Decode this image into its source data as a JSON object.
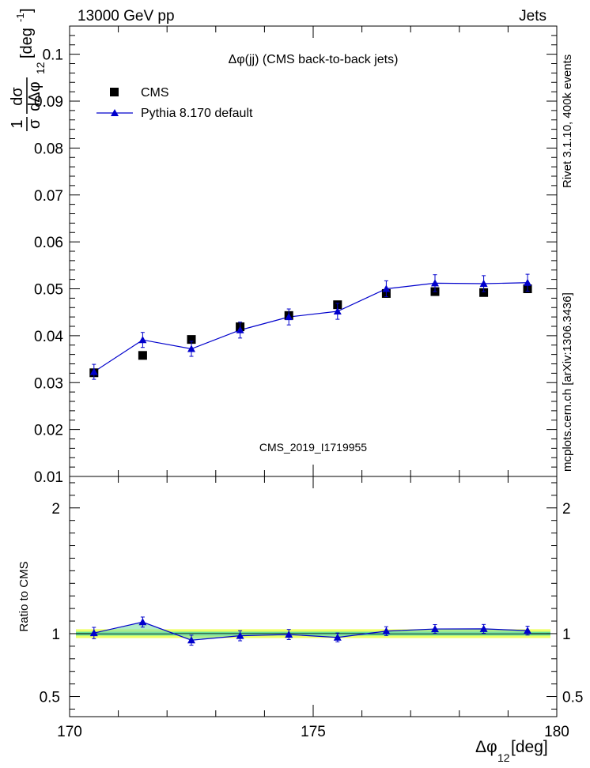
{
  "header": {
    "left": "13000 GeV pp",
    "right": "Jets",
    "side_rivet": "Rivet 3.1.10,  400k events",
    "side_mcplots": "mcplots.cern.ch [arXiv:1306.3436]",
    "watermark": "CMS_2019_I1719955"
  },
  "chart_data": [
    {
      "type": "scatter",
      "title": "Δφ(jj) (CMS back-to-back jets)",
      "ylabel": "1/σ dσ/dΔφ12 [deg⁻¹]",
      "ylabel_parts": {
        "num": "1",
        "den": "σ",
        "dnum": "dσ",
        "dden": "dΔφ",
        "sub": "12",
        "unit": "[deg",
        "exp": "-1",
        "close": "]"
      },
      "xlim": [
        170,
        180
      ],
      "ylim": [
        0.01,
        0.106
      ],
      "yticks": [
        0.01,
        0.02,
        0.03,
        0.04,
        0.05,
        0.06,
        0.07,
        0.08,
        0.09,
        0.1
      ],
      "ytick_labels": [
        "0.01",
        "0.02",
        "0.03",
        "0.04",
        "0.05",
        "0.06",
        "0.07",
        "0.08",
        "0.09",
        "0.1"
      ],
      "legend": {
        "position": "top-left",
        "entries": [
          "CMS",
          "Pythia 8.170 default"
        ]
      },
      "x": [
        170.5,
        171.5,
        172.5,
        173.5,
        174.5,
        175.5,
        176.5,
        177.5,
        178.5,
        179.4
      ],
      "series": [
        {
          "name": "CMS",
          "marker": "square",
          "color": "#000000",
          "values": [
            0.0321,
            0.0358,
            0.0392,
            0.0419,
            0.0443,
            0.0466,
            0.049,
            0.0494,
            0.0492,
            0.05
          ],
          "errors": [
            0.0008,
            0.0004,
            0.0003,
            0.0006,
            0.0004,
            0.0003,
            0.0008,
            0.0003,
            0.0003,
            0.0004
          ]
        },
        {
          "name": "Pythia 8.170 default",
          "marker": "triangle",
          "color": "#0000cc",
          "values": [
            0.0323,
            0.0391,
            0.0372,
            0.0412,
            0.044,
            0.0452,
            0.05,
            0.0512,
            0.0511,
            0.0513
          ],
          "errors": [
            0.0016,
            0.0016,
            0.0016,
            0.0017,
            0.0017,
            0.0017,
            0.0017,
            0.0018,
            0.0017,
            0.0018
          ]
        }
      ]
    },
    {
      "type": "line",
      "ylabel": "Ratio to CMS",
      "xlabel": "Δφ12 [deg]",
      "xlabel_parts": {
        "main": "Δφ",
        "sub": "12",
        "unit": " [deg]"
      },
      "xlim": [
        170,
        180
      ],
      "ylim": [
        0.34,
        2.25
      ],
      "xticks": [
        170,
        175,
        180
      ],
      "xtick_labels": [
        "170",
        "175",
        "180"
      ],
      "yticks": [
        0.5,
        1,
        2
      ],
      "ytick_labels": [
        "0.5",
        "1",
        "2"
      ],
      "band": {
        "inner": [
          0.985,
          1.015
        ],
        "outer": [
          0.965,
          1.035
        ]
      },
      "x": [
        170.5,
        171.5,
        172.5,
        173.5,
        174.5,
        175.5,
        176.5,
        177.5,
        178.5,
        179.4
      ],
      "series": [
        {
          "name": "Pythia 8.170 default",
          "color": "#0000cc",
          "values": [
            1.005,
            1.092,
            0.948,
            0.983,
            0.993,
            0.97,
            1.02,
            1.037,
            1.038,
            1.024
          ],
          "errors": [
            0.045,
            0.04,
            0.04,
            0.04,
            0.04,
            0.035,
            0.035,
            0.035,
            0.035,
            0.035
          ]
        }
      ]
    }
  ],
  "colors": {
    "data": "#000000",
    "mc": "#0000cc",
    "band_inner": "#66dd99",
    "band_outer": "#eeff66",
    "watermark": "#999999",
    "side_text": "#666666"
  }
}
